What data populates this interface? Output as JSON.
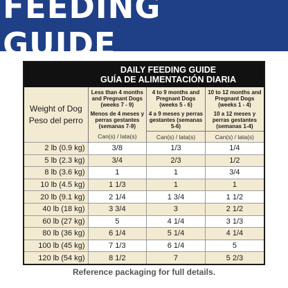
{
  "banner": {
    "title": "FEEDING GUIDE"
  },
  "guide": {
    "title_en": "DAILY FEEDING GUIDE",
    "title_es": "GUÍA DE ALIMENTACIÓN DIARIA",
    "weight_header_en": "Weight of Dog",
    "weight_header_es": "Peso del perro",
    "columns": [
      {
        "en": "Less than 4 months and Pregnant Dogs (weeks 7 - 9)",
        "es": "Menos de 4 meses y perras gestantes (semanas 7-9)",
        "unit": "Can(s) / lata(s)"
      },
      {
        "en": "4 to 9 months and Pregnant Dogs (weeks 5 - 6)",
        "es": "4 a 9 meses y perras gestantes (semanas 5-6)",
        "unit": "Can(s) / lata(s)"
      },
      {
        "en": "10 to 12 months and Pregnant Dogs (weeks 1 - 4)",
        "es": "10 a 12 meses y perras gestantes (semanas 1-4)",
        "unit": "Can(s) / lata(s)"
      }
    ],
    "rows": [
      {
        "weight": "2 lb (0.9 kg)",
        "values": [
          "3/8",
          "1/3",
          "1/4"
        ]
      },
      {
        "weight": "5 lb (2.3 kg)",
        "values": [
          "3/4",
          "2/3",
          "1/2"
        ]
      },
      {
        "weight": "8 lb (3.6 kg)",
        "values": [
          "1",
          "1",
          "3/4"
        ]
      },
      {
        "weight": "10 lb (4.5 kg)",
        "values": [
          "1 1/3",
          "1",
          "1"
        ]
      },
      {
        "weight": "20 lb (9.1 kg)",
        "values": [
          "2 1/4",
          "1 3/4",
          "1 1/2"
        ]
      },
      {
        "weight": "40 lb (18 kg)",
        "values": [
          "3 3/4",
          "3",
          "2 1/2"
        ]
      },
      {
        "weight": "60 lb (27 kg)",
        "values": [
          "5",
          "4 1/4",
          "3 1/3"
        ]
      },
      {
        "weight": "80 lb (36 kg)",
        "values": [
          "6 1/4",
          "5 1/4",
          "4 1/4"
        ]
      },
      {
        "weight": "100 lb (45 kg)",
        "values": [
          "7 1/3",
          "6 1/4",
          "5"
        ]
      },
      {
        "weight": "120 lb (54 kg)",
        "values": [
          "8 1/2",
          "7",
          "5 2/3"
        ]
      }
    ]
  },
  "footnote": "Reference packaging for full details."
}
